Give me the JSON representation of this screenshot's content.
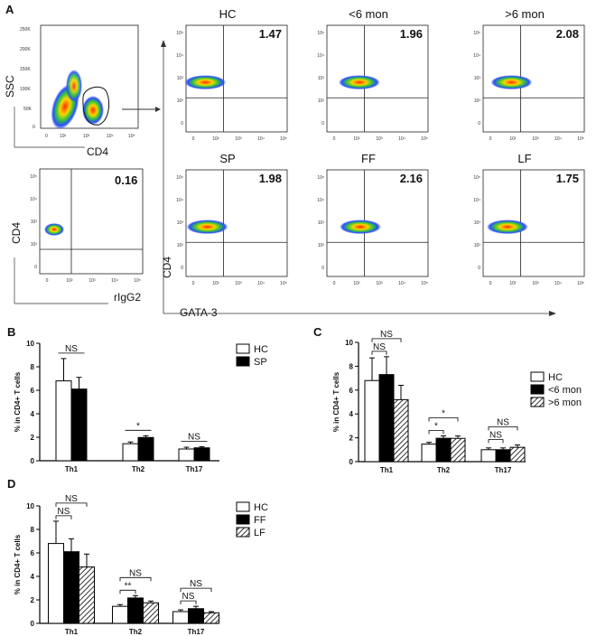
{
  "panel_labels": {
    "A": "A",
    "B": "B",
    "C": "C",
    "D": "D"
  },
  "flow": {
    "gate_plot": {
      "ylabel": "SSC",
      "xlabel": "CD4",
      "yticks": [
        "250K",
        "200K",
        "150K",
        "100K",
        "50K",
        "0"
      ],
      "xticks": [
        "0",
        "10²",
        "10³",
        "10⁴",
        "10⁵"
      ]
    },
    "isotype_plot": {
      "ylabel": "CD4",
      "xlabel": "rIgG2",
      "value": "0.16"
    },
    "row_plots": [
      {
        "title": "HC",
        "value": "1.47"
      },
      {
        "title": "<6 mon",
        "value": "1.96"
      },
      {
        "title": ">6 mon",
        "value": "2.08"
      },
      {
        "title": "SP",
        "value": "1.98"
      },
      {
        "title": "FF",
        "value": "2.16"
      },
      {
        "title": "LF",
        "value": "1.75"
      }
    ],
    "shared_ylabel": "CD4",
    "shared_xlabel": "GATA-3",
    "log_ticks": {
      "y": [
        "10⁵",
        "10⁴",
        "10³",
        "10²",
        "0"
      ],
      "x": [
        "0",
        "10²",
        "10³",
        "10⁴",
        "10⁵"
      ]
    }
  },
  "chart_data": [
    {
      "type": "bar",
      "panel": "B",
      "categories": [
        "Th1",
        "Th2",
        "Th17"
      ],
      "ylabel": "% in CD4+ T cells",
      "ylim": [
        0,
        10
      ],
      "yticks": [
        "0",
        "2",
        "4",
        "6",
        "8",
        "10"
      ],
      "legend": [
        "HC",
        "SP"
      ],
      "series": [
        {
          "name": "HC",
          "values": [
            6.8,
            1.45,
            1.0
          ],
          "errors": [
            1.9,
            0.15,
            0.15
          ],
          "fill": "#ffffff"
        },
        {
          "name": "SP",
          "values": [
            6.1,
            1.98,
            1.1
          ],
          "errors": [
            1.0,
            0.15,
            0.1
          ],
          "fill": "#000000"
        }
      ],
      "annotations": [
        {
          "category": "Th1",
          "label": "NS",
          "from": 0,
          "to": 1
        },
        {
          "category": "Th2",
          "label": "*",
          "from": 0,
          "to": 1
        },
        {
          "category": "Th17",
          "label": "NS",
          "from": 0,
          "to": 1
        }
      ]
    },
    {
      "type": "bar",
      "panel": "C",
      "categories": [
        "Th1",
        "Th2",
        "Th17"
      ],
      "ylabel": "% in CD4+ T cells",
      "ylim": [
        0,
        10
      ],
      "yticks": [
        "0",
        "2",
        "4",
        "6",
        "8",
        "10"
      ],
      "legend": [
        "HC",
        "<6 mon",
        ">6 mon"
      ],
      "series": [
        {
          "name": "HC",
          "values": [
            6.8,
            1.47,
            1.0
          ],
          "errors": [
            1.9,
            0.15,
            0.15
          ],
          "fill": "#ffffff"
        },
        {
          "name": "<6 mon",
          "values": [
            7.3,
            1.96,
            1.0
          ],
          "errors": [
            1.5,
            0.2,
            0.15
          ],
          "fill": "#000000"
        },
        {
          "name": ">6 mon",
          "values": [
            5.2,
            1.95,
            1.2
          ],
          "errors": [
            1.2,
            0.2,
            0.2
          ],
          "fill": "hatch"
        }
      ],
      "annotations": [
        {
          "category": "Th1",
          "label": "NS",
          "from": 0,
          "to": 1,
          "level": 1
        },
        {
          "category": "Th1",
          "label": "NS",
          "from": 0,
          "to": 2,
          "level": 2
        },
        {
          "category": "Th2",
          "label": "*",
          "from": 0,
          "to": 1,
          "level": 1
        },
        {
          "category": "Th2",
          "label": "*",
          "from": 0,
          "to": 2,
          "level": 2
        },
        {
          "category": "Th17",
          "label": "NS",
          "from": 0,
          "to": 1,
          "level": 1
        },
        {
          "category": "Th17",
          "label": "NS",
          "from": 0,
          "to": 2,
          "level": 2
        }
      ]
    },
    {
      "type": "bar",
      "panel": "D",
      "categories": [
        "Th1",
        "Th2",
        "Th17"
      ],
      "ylabel": "% in CD4+ T cells",
      "ylim": [
        0,
        10
      ],
      "yticks": [
        "0",
        "2",
        "4",
        "6",
        "8",
        "10"
      ],
      "legend": [
        "HC",
        "FF",
        "LF"
      ],
      "series": [
        {
          "name": "HC",
          "values": [
            6.8,
            1.45,
            1.0
          ],
          "errors": [
            1.9,
            0.15,
            0.15
          ],
          "fill": "#ffffff"
        },
        {
          "name": "FF",
          "values": [
            6.1,
            2.16,
            1.25
          ],
          "errors": [
            1.1,
            0.2,
            0.2
          ],
          "fill": "#000000"
        },
        {
          "name": "LF",
          "values": [
            4.8,
            1.75,
            0.9
          ],
          "errors": [
            1.1,
            0.15,
            0.1
          ],
          "fill": "hatch"
        }
      ],
      "annotations": [
        {
          "category": "Th1",
          "label": "NS",
          "from": 0,
          "to": 1,
          "level": 1
        },
        {
          "category": "Th1",
          "label": "NS",
          "from": 0,
          "to": 2,
          "level": 2
        },
        {
          "category": "Th2",
          "label": "**",
          "from": 0,
          "to": 1,
          "level": 1
        },
        {
          "category": "Th2",
          "label": "NS",
          "from": 0,
          "to": 2,
          "level": 2
        },
        {
          "category": "Th17",
          "label": "NS",
          "from": 0,
          "to": 1,
          "level": 1
        },
        {
          "category": "Th17",
          "label": "NS",
          "from": 0,
          "to": 2,
          "level": 2
        }
      ]
    }
  ]
}
